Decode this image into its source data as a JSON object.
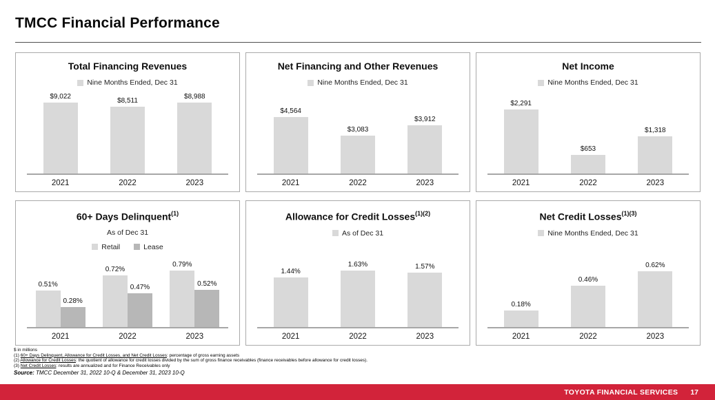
{
  "page": {
    "title": "TMCC Financial Performance"
  },
  "footer": {
    "brand": "TOYOTA FINANCIAL SERVICES",
    "page_number": "17",
    "bar_color": "#d2233a"
  },
  "colors": {
    "bar_light": "#d9d9d9",
    "bar_dark": "#b7b7b7",
    "axis": "#a6a6a6",
    "panel_border": "#a9a9a9"
  },
  "chart_data": [
    {
      "type": "bar",
      "title": "Total Financing Revenues",
      "title_sup": "",
      "subtitle": "",
      "legend": [
        {
          "label": "Nine Months Ended, Dec 31",
          "swatch": "bar_light"
        }
      ],
      "categories": [
        "2021",
        "2022",
        "2023"
      ],
      "series": [
        {
          "name": "Total Financing Revenues",
          "color": "bar_light",
          "values": [
            9022,
            8511,
            8988
          ],
          "labels": [
            "$9,022",
            "$8,511",
            "$8,988"
          ]
        }
      ],
      "ylim": [
        0,
        9022
      ],
      "grid": false,
      "legend_position": "top"
    },
    {
      "type": "bar",
      "title": "Net Financing and Other Revenues",
      "title_sup": "",
      "subtitle": "",
      "legend": [
        {
          "label": "Nine Months Ended, Dec 31",
          "swatch": "bar_light"
        }
      ],
      "categories": [
        "2021",
        "2022",
        "2023"
      ],
      "series": [
        {
          "name": "Net Financing and Other Revenues",
          "color": "bar_light",
          "values": [
            4564,
            3083,
            3912
          ],
          "labels": [
            "$4,564",
            "$3,083",
            "$3,912"
          ]
        }
      ],
      "ylim": [
        0,
        4564
      ],
      "grid": false,
      "legend_position": "top"
    },
    {
      "type": "bar",
      "title": "Net Income",
      "title_sup": "",
      "subtitle": "",
      "legend": [
        {
          "label": "Nine Months Ended, Dec 31",
          "swatch": "bar_light"
        }
      ],
      "categories": [
        "2021",
        "2022",
        "2023"
      ],
      "series": [
        {
          "name": "Net Income",
          "color": "bar_light",
          "values": [
            2291,
            653,
            1318
          ],
          "labels": [
            "$2,291",
            "$653",
            "$1,318"
          ]
        }
      ],
      "ylim": [
        0,
        2291
      ],
      "grid": false,
      "legend_position": "top"
    },
    {
      "type": "bar",
      "title": "60+ Days Delinquent",
      "title_sup": "(1)",
      "subtitle": "As of Dec 31",
      "legend": [
        {
          "label": "Retail",
          "swatch": "bar_light"
        },
        {
          "label": "Lease",
          "swatch": "bar_dark"
        }
      ],
      "categories": [
        "2021",
        "2022",
        "2023"
      ],
      "series": [
        {
          "name": "Retail",
          "color": "bar_light",
          "values": [
            0.51,
            0.72,
            0.79
          ],
          "labels": [
            "0.51%",
            "0.72%",
            "0.79%"
          ]
        },
        {
          "name": "Lease",
          "color": "bar_dark",
          "values": [
            0.28,
            0.47,
            0.52
          ],
          "labels": [
            "0.28%",
            "0.47%",
            "0.52%"
          ]
        }
      ],
      "ylim": [
        0,
        0.79
      ],
      "grid": false,
      "legend_position": "top"
    },
    {
      "type": "bar",
      "title": "Allowance for Credit Losses",
      "title_sup": "(1)(2)",
      "subtitle": "",
      "legend": [
        {
          "label": "As of Dec 31",
          "swatch": "bar_light"
        }
      ],
      "categories": [
        "2021",
        "2022",
        "2023"
      ],
      "series": [
        {
          "name": "Allowance for Credit Losses",
          "color": "bar_light",
          "values": [
            1.44,
            1.63,
            1.57
          ],
          "labels": [
            "1.44%",
            "1.63%",
            "1.57%"
          ]
        }
      ],
      "ylim": [
        0,
        1.63
      ],
      "grid": false,
      "legend_position": "top"
    },
    {
      "type": "bar",
      "title": "Net Credit Losses",
      "title_sup": "(1)(3)",
      "subtitle": "",
      "legend": [
        {
          "label": "Nine Months Ended, Dec 31",
          "swatch": "bar_light"
        }
      ],
      "categories": [
        "2021",
        "2022",
        "2023"
      ],
      "series": [
        {
          "name": "Net Credit Losses",
          "color": "bar_light",
          "values": [
            0.18,
            0.46,
            0.62
          ],
          "labels": [
            "0.18%",
            "0.46%",
            "0.62%"
          ]
        }
      ],
      "ylim": [
        0,
        0.62
      ],
      "grid": false,
      "legend_position": "top"
    }
  ],
  "footnotes": {
    "lines": [
      [
        {
          "t": "$ in millions"
        }
      ],
      [
        {
          "t": "(1) "
        },
        {
          "t": "60+ Days Delinquent, Allowance for Credit Losses, and Net Credit Losses",
          "u": true
        },
        {
          "t": ": percentage of gross earning assets"
        }
      ],
      [
        {
          "t": "(2) "
        },
        {
          "t": "Allowance for Credit Losses",
          "u": true
        },
        {
          "t": ": the quotient of allowance for credit losses divided by the sum of gross finance receivables (finance receivables before allowance for credit losses)."
        }
      ],
      [
        {
          "t": "(3) "
        },
        {
          "t": "Net Credit Losses",
          "u": true
        },
        {
          "t": ": results are annualized and for Finance Receivables only"
        }
      ]
    ],
    "source": [
      {
        "t": "Source:",
        "b": true,
        "i": true
      },
      {
        "t": " TMCC December 31, 2022 10-Q & December 31, 2023 10-Q",
        "i": true
      }
    ]
  }
}
